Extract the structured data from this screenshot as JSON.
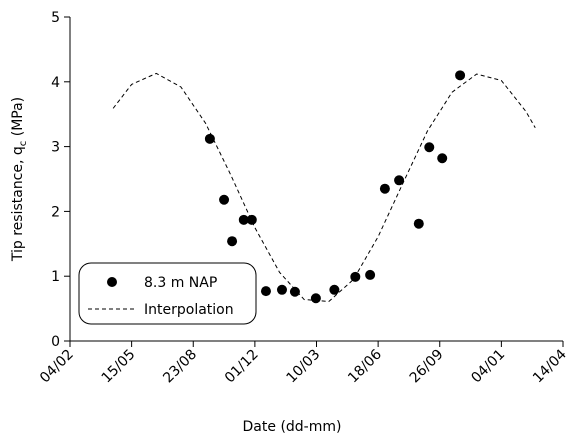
{
  "chart_data": {
    "type": "scatter",
    "x_label": "Date (dd-mm)",
    "y_label": {
      "prefix": "Tip resistance, q",
      "sub": "c",
      "suffix": " (MPa)"
    },
    "xlim": [
      0,
      800
    ],
    "xticks": [
      {
        "value": 0,
        "label": "04/02"
      },
      {
        "value": 100,
        "label": "15/05"
      },
      {
        "value": 200,
        "label": "23/08"
      },
      {
        "value": 300,
        "label": "01/12"
      },
      {
        "value": 400,
        "label": "10/03"
      },
      {
        "value": 500,
        "label": "18/06"
      },
      {
        "value": 600,
        "label": "26/09"
      },
      {
        "value": 700,
        "label": "04/01"
      },
      {
        "value": 800,
        "label": "14/04"
      }
    ],
    "ylim": [
      0,
      5
    ],
    "yticks": [
      0,
      1,
      2,
      3,
      4,
      5
    ],
    "grid": false,
    "legend": "lower left",
    "series": [
      {
        "name": "8.3 m NAP",
        "color": "#000000",
        "marker": "circle",
        "x": [
          227,
          250,
          263,
          282,
          295,
          318,
          344,
          365,
          399,
          429,
          463,
          487,
          511,
          534,
          566,
          583,
          604,
          633
        ],
        "values": [
          3.12,
          2.18,
          1.54,
          1.87,
          1.87,
          0.77,
          0.79,
          0.76,
          0.66,
          0.79,
          0.99,
          1.02,
          2.35,
          2.48,
          1.81,
          2.99,
          2.82,
          4.1
        ]
      },
      {
        "name": "Interpolation",
        "color": "#000000",
        "style": "dashed",
        "x": [
          70,
          100,
          140,
          180,
          220,
          260,
          300,
          340,
          380,
          420,
          460,
          500,
          540,
          580,
          620,
          660,
          700,
          740,
          755
        ],
        "values": [
          3.59,
          3.96,
          4.13,
          3.92,
          3.36,
          2.58,
          1.75,
          1.06,
          0.64,
          0.61,
          0.95,
          1.61,
          2.43,
          3.24,
          3.84,
          4.12,
          4.02,
          3.54,
          3.29
        ]
      }
    ]
  }
}
